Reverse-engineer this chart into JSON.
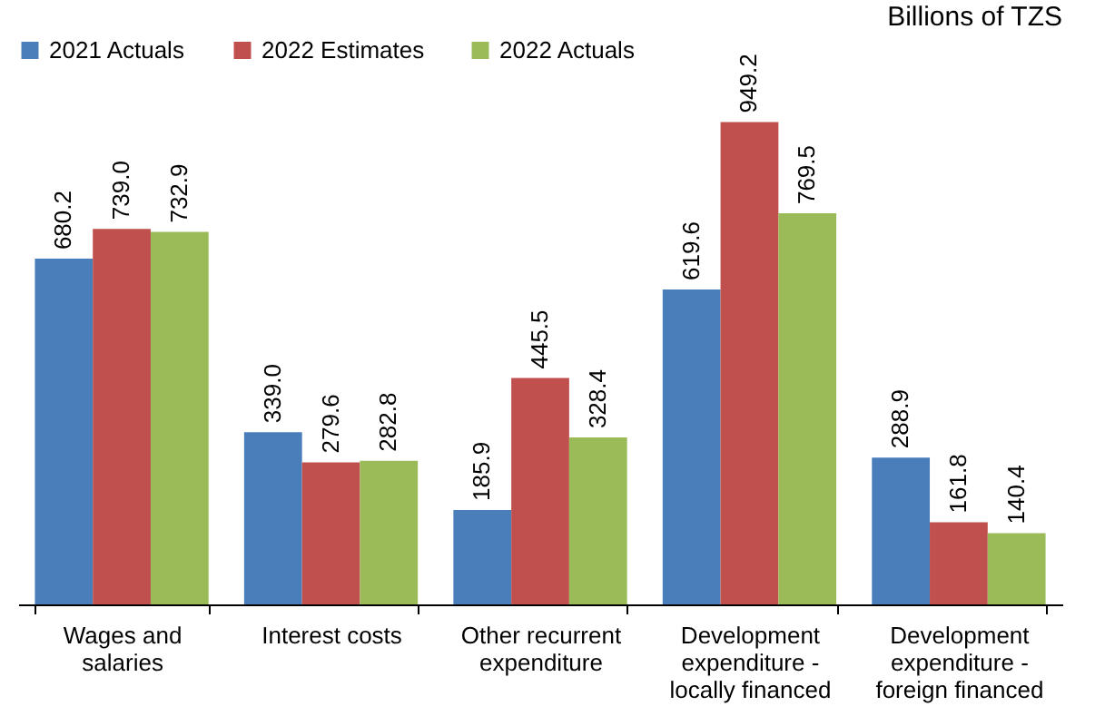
{
  "chart_data": {
    "type": "bar",
    "subtitle": "Billions of TZS",
    "categories": [
      "Wages and salaries",
      "Interest costs",
      "Other recurrent expenditure",
      "Development expenditure - locally financed",
      "Development expenditure - foreign financed"
    ],
    "series": [
      {
        "name": "2021 Actuals",
        "color": "#4a7ebb",
        "values": [
          680.2,
          339.0,
          185.9,
          619.6,
          288.9
        ],
        "value_labels": [
          "680.2",
          "339.0",
          "185.9",
          "619.6",
          "288.9"
        ]
      },
      {
        "name": "2022 Estimates",
        "color": "#c0504d",
        "values": [
          739.0,
          279.6,
          445.5,
          949.2,
          161.8
        ],
        "value_labels": [
          "739.0",
          "279.6",
          "445.5",
          "949.2",
          "161.8"
        ]
      },
      {
        "name": "2022 Actuals",
        "color": "#9bbb59",
        "values": [
          732.9,
          282.8,
          328.4,
          769.5,
          140.4
        ],
        "value_labels": [
          "732.9",
          "282.8",
          "328.4",
          "769.5",
          "140.4"
        ]
      }
    ],
    "legend": "top",
    "grid": false
  }
}
